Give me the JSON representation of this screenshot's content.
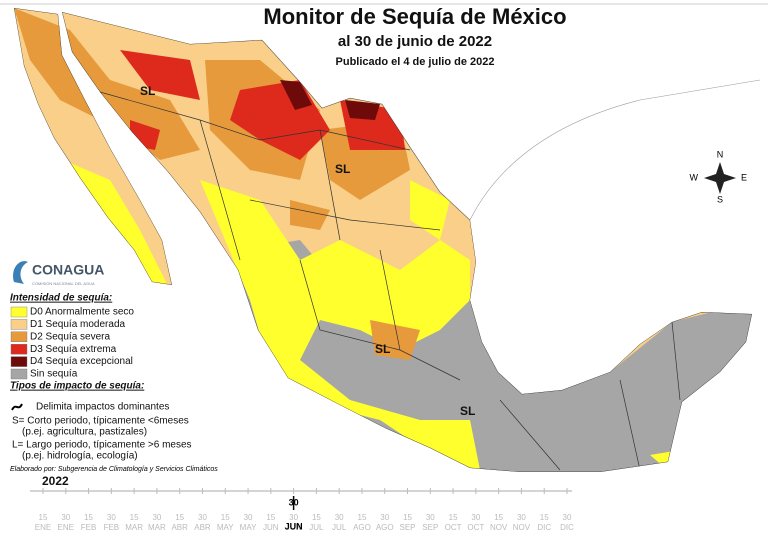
{
  "header": {
    "title": "Monitor de Sequía de México",
    "subtitle": "al 30 de junio de 2022",
    "published": "Publicado el 4 de julio de 2022"
  },
  "logo": {
    "name": "CONAGUA",
    "tagline": "COMISIÓN NACIONAL DEL AGUA"
  },
  "compass": {
    "n": "N",
    "s": "S",
    "e": "E",
    "w": "W"
  },
  "map_labels": [
    "SL",
    "SL",
    "SL",
    "SL"
  ],
  "legend": {
    "title": "Intensidad de sequía:",
    "items": [
      {
        "label": "D0 Anormalmente seco",
        "color": "#ffff2e"
      },
      {
        "label": "D1 Sequía moderada",
        "color": "#f9cf8a"
      },
      {
        "label": "D2 Sequía severa",
        "color": "#e69a3c"
      },
      {
        "label": "D3 Sequía extrema",
        "color": "#dd2a1c"
      },
      {
        "label": "D4 Sequía excepcional",
        "color": "#6e0a0a"
      },
      {
        "label": "Sin sequía",
        "color": "#a6a6a6"
      }
    ]
  },
  "impact": {
    "title": "Tipos de impacto de sequía:",
    "items": [
      "Delimita impactos dominantes",
      "S= Corto periodo, típicamente <6meses",
      "(p.ej. agricultura, pastizales)",
      "L= Largo periodo, típicamente >6 meses",
      "(p.ej. hidrología, ecología)"
    ]
  },
  "credit": "Elaborado por: Subgerencia de Climatología y Servicios Climáticos",
  "timeline": {
    "year": "2022",
    "months": [
      "ENE",
      "FEB",
      "MAR",
      "ABR",
      "MAY",
      "JUN",
      "JUL",
      "AGO",
      "SEP",
      "OCT",
      "NOV",
      "DIC"
    ],
    "days": [
      "15",
      "30"
    ],
    "current": {
      "day": "30",
      "month": "JUN"
    }
  }
}
